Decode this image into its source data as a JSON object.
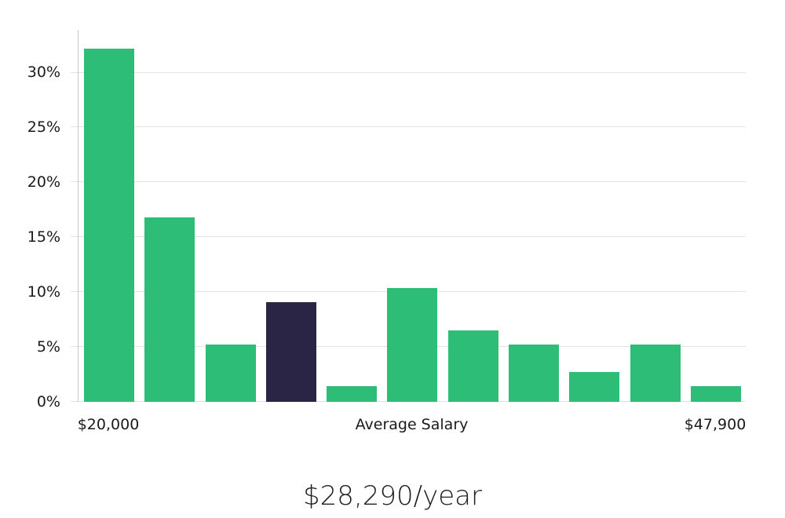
{
  "chart_data": {
    "type": "bar",
    "title": "$28,290/year",
    "values": [
      32.2,
      16.8,
      5.2,
      9.1,
      1.4,
      10.4,
      6.5,
      5.2,
      2.7,
      5.2,
      1.4
    ],
    "highlight_index": 3,
    "y_tick_values": [
      0,
      5,
      10,
      15,
      20,
      25,
      30
    ],
    "y_tick_labels": [
      "0%",
      "5%",
      "10%",
      "15%",
      "20%",
      "25%",
      "30%"
    ],
    "ylim": [
      0,
      33.9
    ],
    "x_tick_labels": [
      {
        "label": "$20,000",
        "anchor": "first-bar"
      },
      {
        "label": "Average Salary",
        "anchor": "center"
      },
      {
        "label": "$47,900",
        "anchor": "last-bar"
      }
    ],
    "grid": true,
    "legend": false,
    "colors": {
      "bar": "#2dbd76",
      "highlight_bar": "#2a2545",
      "gridline": "#e2e2e2",
      "axis_line": "#c9c9c9",
      "tick_text": "#1a1a1a",
      "title_text": "#1f1f1f",
      "background": "#ffffff"
    }
  }
}
